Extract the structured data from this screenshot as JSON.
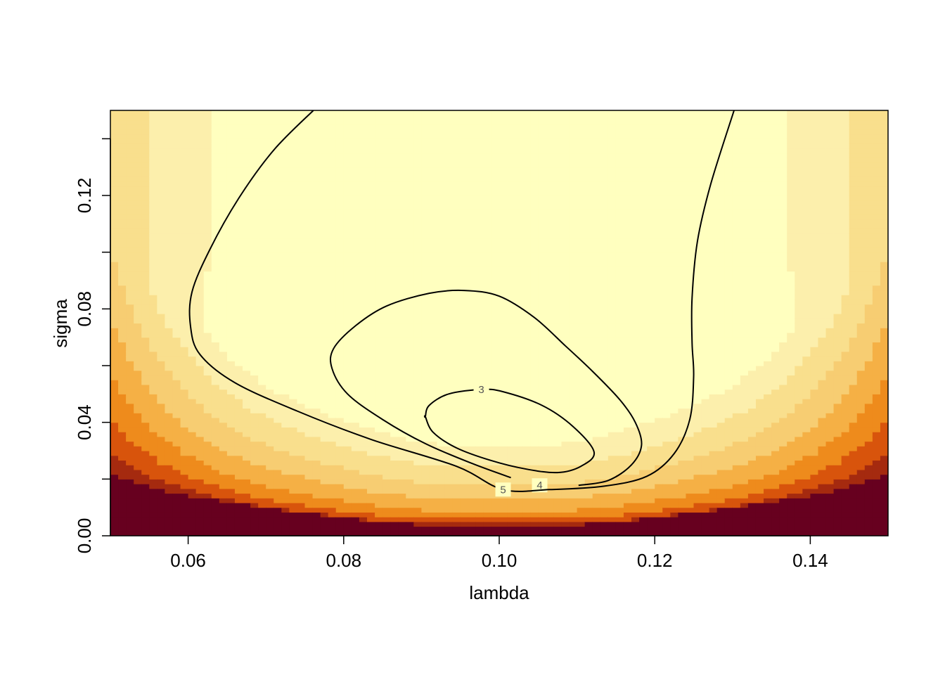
{
  "chart_data": {
    "type": "heatmap",
    "title": "",
    "xlabel": "lambda",
    "ylabel": "sigma",
    "xlim": [
      0.05,
      0.15
    ],
    "ylim": [
      0.0,
      0.15
    ],
    "x_ticks": [
      "0.06",
      "0.08",
      "0.10",
      "0.12",
      "0.14"
    ],
    "y_ticks": [
      "0.00",
      "0.04",
      "0.08",
      "0.12"
    ],
    "y_tick_minor_values": [
      0.02,
      0.06,
      0.1,
      0.14
    ],
    "palette": [
      "#67001F",
      "#A52A0F",
      "#D8540C",
      "#EE8B1C",
      "#F5B045",
      "#F7CD72",
      "#F9DF8D",
      "#FCEFAC",
      "#FFFFBF"
    ],
    "contours": [
      {
        "level": "3",
        "label_at": [
          0.0977,
          0.0516
        ],
        "points": [
          [
            0.0905,
            0.042
          ],
          [
            0.0915,
            0.0365
          ],
          [
            0.0945,
            0.031
          ],
          [
            0.099,
            0.0265
          ],
          [
            0.1035,
            0.0235
          ],
          [
            0.1075,
            0.0223
          ],
          [
            0.1105,
            0.0245
          ],
          [
            0.1122,
            0.0295
          ],
          [
            0.1095,
            0.0385
          ],
          [
            0.1055,
            0.046
          ],
          [
            0.1005,
            0.0508
          ],
          [
            0.0977,
            0.0516
          ],
          [
            0.0935,
            0.05
          ],
          [
            0.091,
            0.046
          ],
          [
            0.0905,
            0.042
          ]
        ]
      },
      {
        "level": "4",
        "label_at": [
          0.1052,
          0.0178
        ],
        "points": [
          [
            0.1102,
            0.0178
          ],
          [
            0.114,
            0.0195
          ],
          [
            0.117,
            0.025
          ],
          [
            0.1183,
            0.032
          ],
          [
            0.1175,
            0.04
          ],
          [
            0.1155,
            0.048
          ],
          [
            0.112,
            0.058
          ],
          [
            0.1085,
            0.067
          ],
          [
            0.1045,
            0.077
          ],
          [
            0.1,
            0.0845
          ],
          [
            0.0955,
            0.0865
          ],
          [
            0.091,
            0.0855
          ],
          [
            0.0855,
            0.081
          ],
          [
            0.0815,
            0.074
          ],
          [
            0.0787,
            0.066
          ],
          [
            0.0785,
            0.059
          ],
          [
            0.0805,
            0.05
          ],
          [
            0.085,
            0.041
          ],
          [
            0.0905,
            0.0325
          ],
          [
            0.0965,
            0.0255
          ],
          [
            0.1015,
            0.0205
          ]
        ]
      },
      {
        "level": "5",
        "label_at": [
          0.1005,
          0.0163
        ],
        "points": [
          [
            0.0761,
            0.15
          ],
          [
            0.071,
            0.136
          ],
          [
            0.0665,
            0.119
          ],
          [
            0.0628,
            0.101
          ],
          [
            0.0605,
            0.086
          ],
          [
            0.0603,
            0.074
          ],
          [
            0.0615,
            0.064
          ],
          [
            0.066,
            0.054
          ],
          [
            0.074,
            0.044
          ],
          [
            0.0835,
            0.034
          ],
          [
            0.0945,
            0.0245
          ],
          [
            0.1005,
            0.0163
          ],
          [
            0.1065,
            0.0163
          ],
          [
            0.1135,
            0.0175
          ],
          [
            0.119,
            0.021
          ],
          [
            0.1225,
            0.029
          ],
          [
            0.1245,
            0.041
          ],
          [
            0.125,
            0.056
          ],
          [
            0.1248,
            0.068
          ],
          [
            0.1248,
            0.084
          ],
          [
            0.1255,
            0.104
          ],
          [
            0.1272,
            0.124
          ],
          [
            0.1302,
            0.15
          ]
        ]
      }
    ]
  }
}
